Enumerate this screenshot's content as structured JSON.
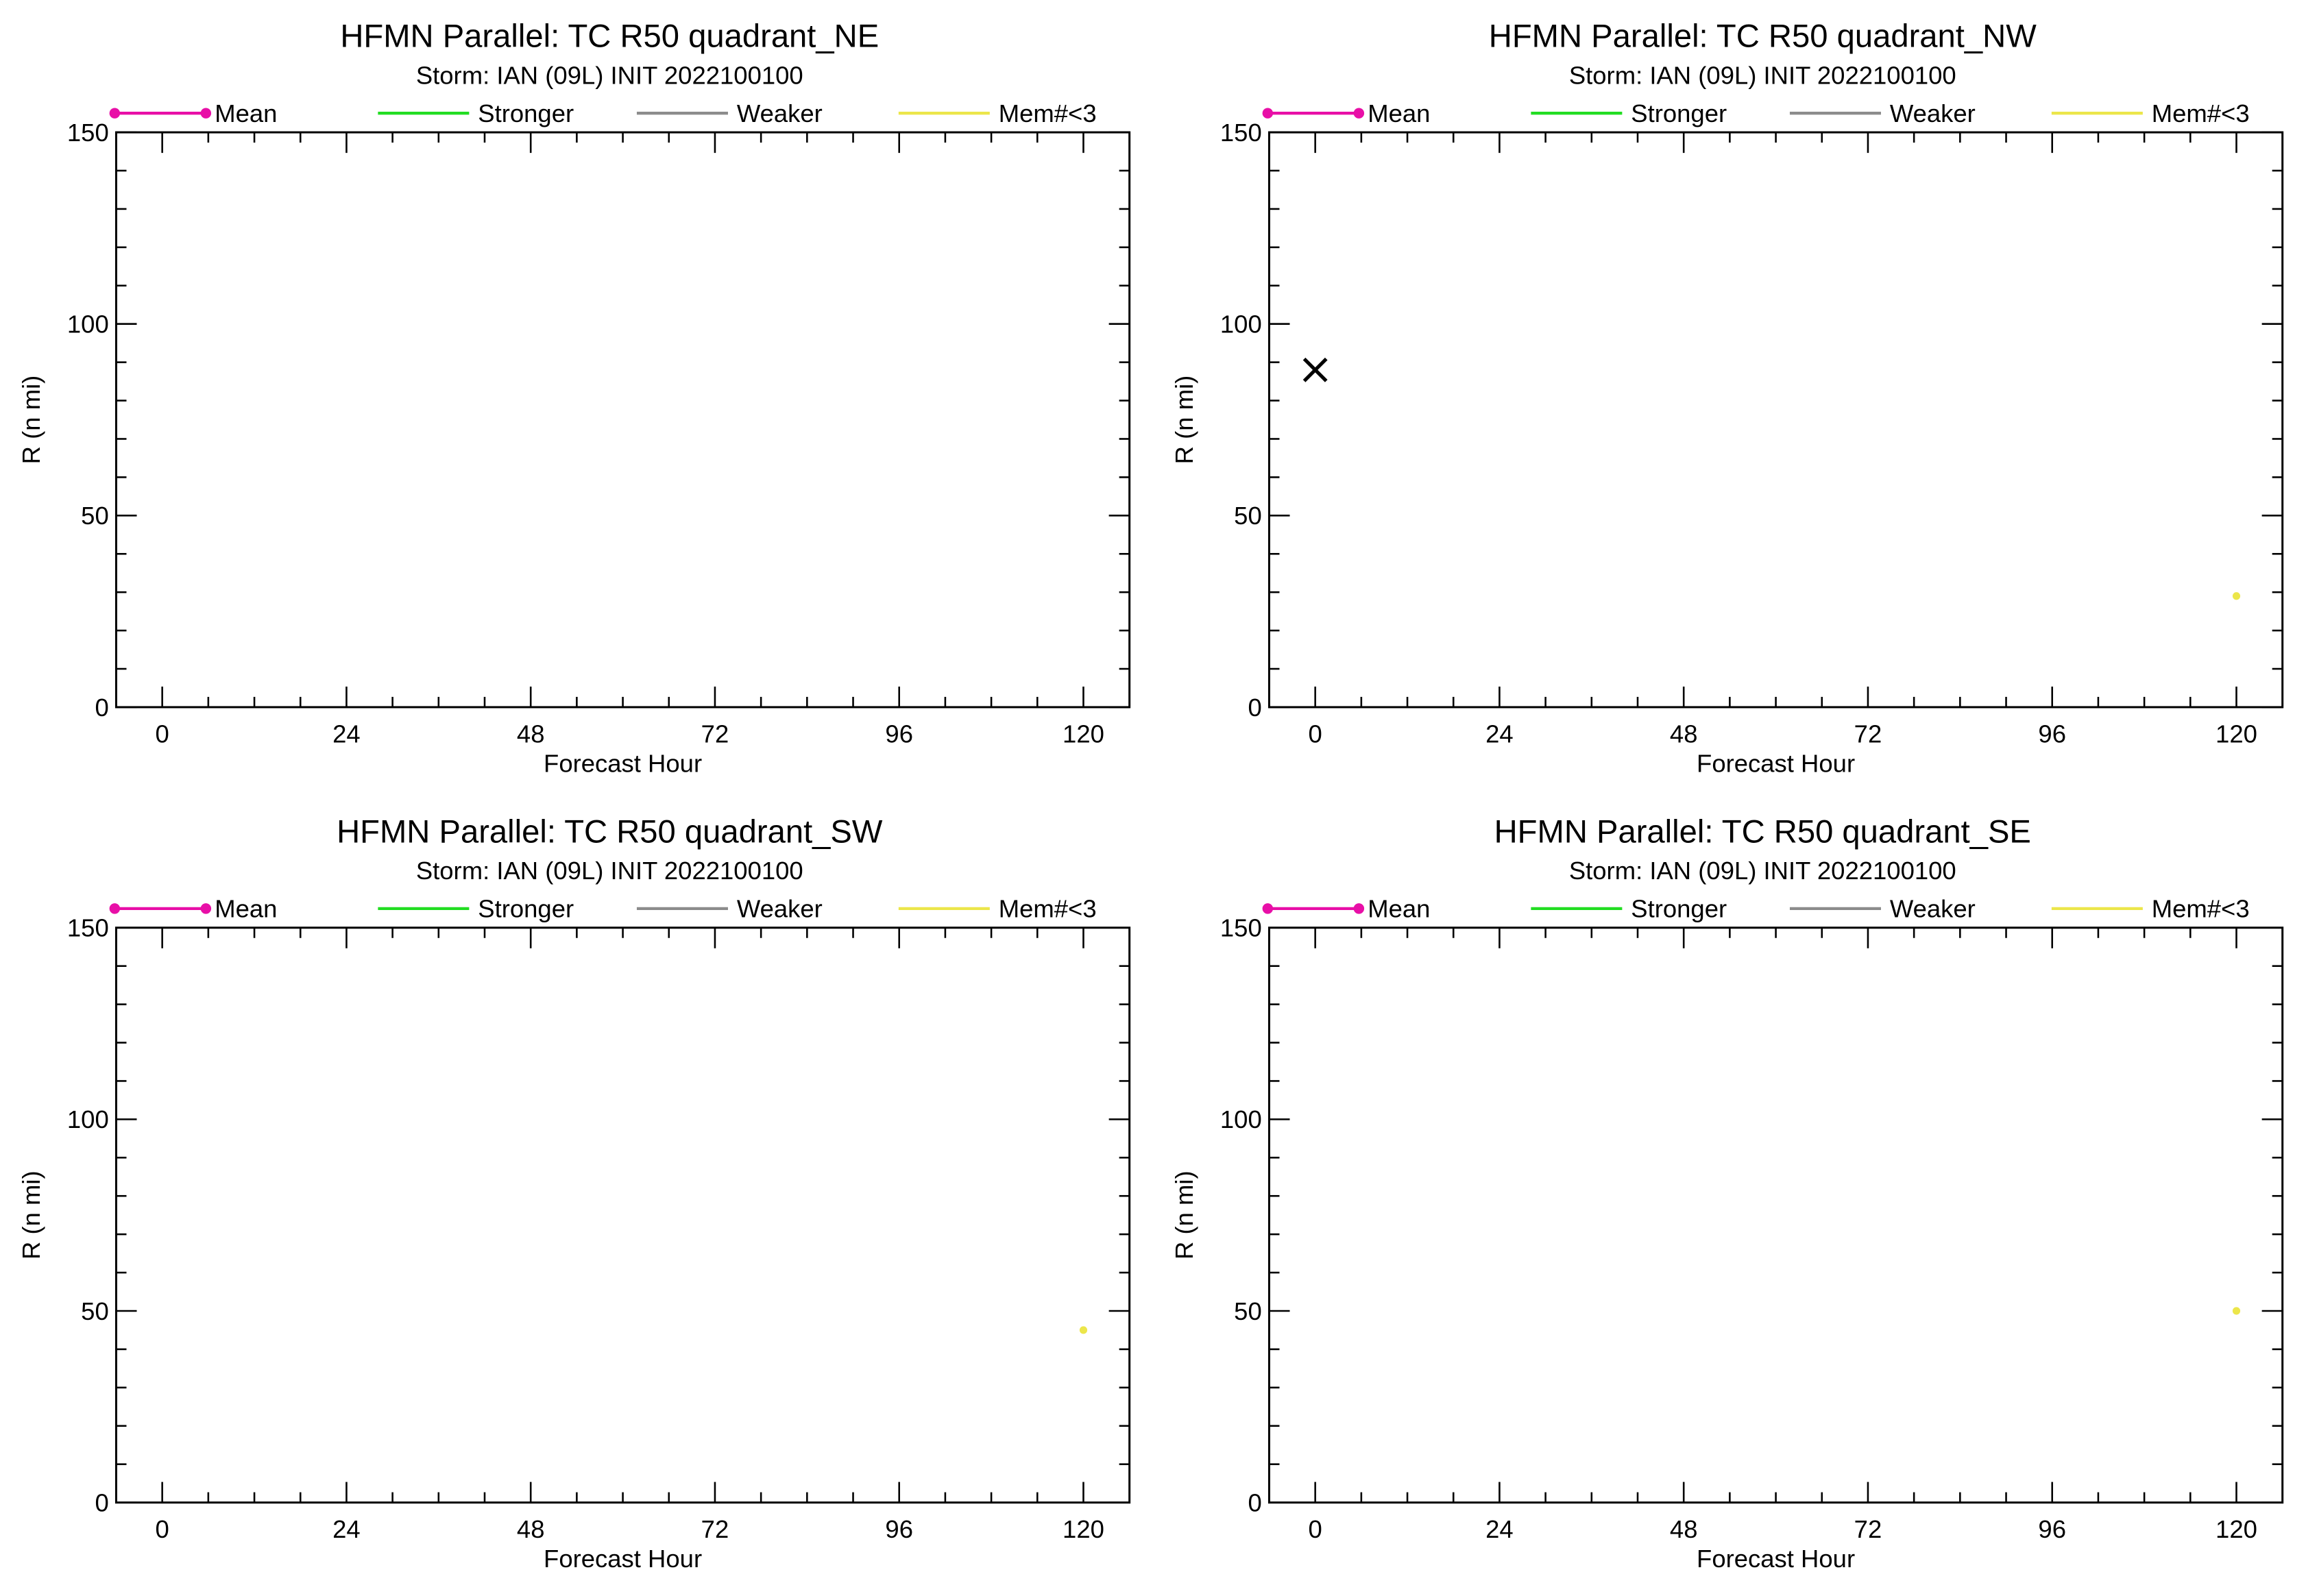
{
  "chart_data": [
    {
      "type": "line",
      "title": "HFMN Parallel: TC  R50 quadrant_NE",
      "subtitle": "Storm: IAN (09L) INIT 2022100100",
      "xlabel": "Forecast Hour",
      "ylabel": "R (n mi)",
      "xlim": [
        -6,
        126
      ],
      "ylim": [
        0,
        150
      ],
      "xticks": [
        "0",
        "24",
        "48",
        "72",
        "96",
        "120"
      ],
      "yticks": [
        "0",
        "50",
        "100",
        "150"
      ],
      "legend": [
        "Mean",
        "Stronger",
        "Weaker",
        "Mem#<3"
      ],
      "legend_position": "top",
      "series": [],
      "markers": []
    },
    {
      "type": "line",
      "title": "HFMN Parallel: TC  R50 quadrant_NW",
      "subtitle": "Storm: IAN (09L) INIT 2022100100",
      "xlabel": "Forecast Hour",
      "ylabel": "R (n mi)",
      "xlim": [
        -6,
        126
      ],
      "ylim": [
        0,
        150
      ],
      "xticks": [
        "0",
        "24",
        "48",
        "72",
        "96",
        "120"
      ],
      "yticks": [
        "0",
        "50",
        "100",
        "150"
      ],
      "legend": [
        "Mean",
        "Stronger",
        "Weaker",
        "Mem#<3"
      ],
      "legend_position": "top",
      "series": [
        {
          "name": "Mem#<3",
          "x": [
            120
          ],
          "y": [
            29
          ]
        }
      ],
      "markers": [
        {
          "symbol": "x",
          "x": 0,
          "y": 88
        }
      ]
    },
    {
      "type": "line",
      "title": "HFMN Parallel: TC  R50 quadrant_SW",
      "subtitle": "Storm: IAN (09L) INIT 2022100100",
      "xlabel": "Forecast Hour",
      "ylabel": "R (n mi)",
      "xlim": [
        -6,
        126
      ],
      "ylim": [
        0,
        150
      ],
      "xticks": [
        "0",
        "24",
        "48",
        "72",
        "96",
        "120"
      ],
      "yticks": [
        "0",
        "50",
        "100",
        "150"
      ],
      "legend": [
        "Mean",
        "Stronger",
        "Weaker",
        "Mem#<3"
      ],
      "legend_position": "top",
      "series": [
        {
          "name": "Mem#<3",
          "x": [
            120
          ],
          "y": [
            45
          ]
        }
      ],
      "markers": []
    },
    {
      "type": "line",
      "title": "HFMN Parallel: TC  R50 quadrant_SE",
      "subtitle": "Storm: IAN (09L) INIT 2022100100",
      "xlabel": "Forecast Hour",
      "ylabel": "R (n mi)",
      "xlim": [
        -6,
        126
      ],
      "ylim": [
        0,
        150
      ],
      "xticks": [
        "0",
        "24",
        "48",
        "72",
        "96",
        "120"
      ],
      "yticks": [
        "0",
        "50",
        "100",
        "150"
      ],
      "legend": [
        "Mean",
        "Stronger",
        "Weaker",
        "Mem#<3"
      ],
      "legend_position": "top",
      "series": [
        {
          "name": "Mem#<3",
          "x": [
            120
          ],
          "y": [
            50
          ]
        }
      ],
      "markers": []
    }
  ],
  "colors": {
    "Mean": "#e80fa7",
    "Stronger": "#22dd22",
    "Weaker": "#8c8c8c",
    "Mem#<3": "#ece64a",
    "axis": "#000000"
  }
}
